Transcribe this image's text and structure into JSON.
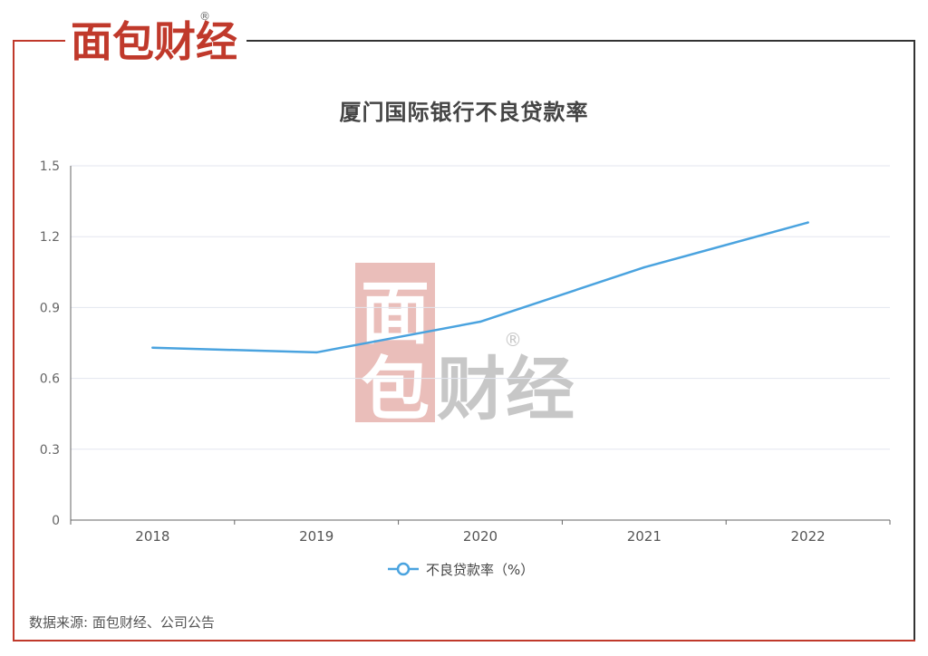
{
  "brand": {
    "text": "面包财经",
    "registered": "®"
  },
  "watermark": {
    "text": "面包财经",
    "registered": "®"
  },
  "chart_data": {
    "type": "line",
    "title": "厦门国际银行不良贷款率",
    "categories": [
      "2018",
      "2019",
      "2020",
      "2021",
      "2022"
    ],
    "series": [
      {
        "name": "不良贷款率（%）",
        "values": [
          0.73,
          0.71,
          0.84,
          1.07,
          1.26
        ],
        "color": "#4aa3df"
      }
    ],
    "yticks": [
      "0",
      "0.3",
      "0.6",
      "0.9",
      "1.2",
      "1.5"
    ],
    "ylim": [
      0,
      1.5
    ],
    "grid": true,
    "legend_position": "bottom-center"
  },
  "source": "数据来源: 面包财经、公司公告",
  "colors": {
    "accent": "#c0392b",
    "line": "#4aa3df",
    "grid": "#e3e6ef",
    "axis": "#666666"
  }
}
